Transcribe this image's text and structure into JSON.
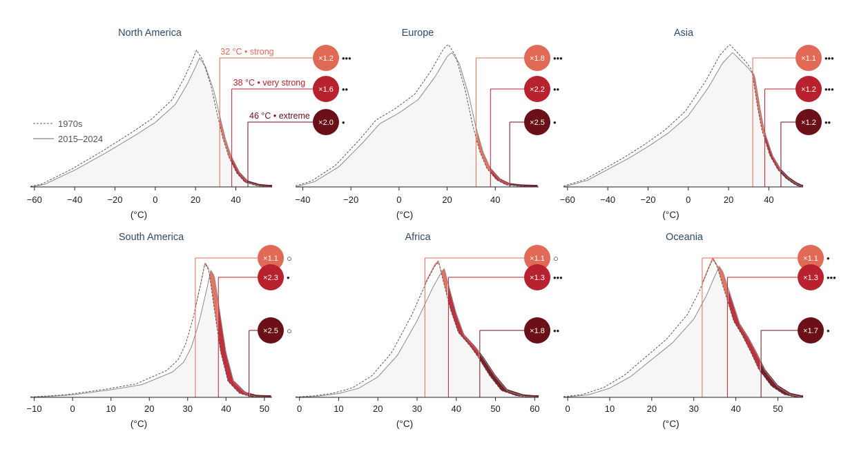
{
  "colors": {
    "strong": "#e06a55",
    "very_strong": "#b8212e",
    "extreme": "#6b0f18",
    "title": "#2f4a6b",
    "dots": "#2a3a5c",
    "fill": "#f6f6f6",
    "curve": "#8a8a8a"
  },
  "legend": {
    "items": [
      "1970s",
      "2015–2024"
    ]
  },
  "chart_data": [
    {
      "type": "area",
      "title": "North America",
      "xlabel": "(°C)",
      "xlim": [
        -62,
        58
      ],
      "xticks": [
        -60,
        -40,
        -20,
        0,
        20,
        40
      ],
      "peak": 21,
      "thresholds": [
        {
          "temp": 32,
          "label": "32 °C • strong",
          "ratio": "×1.2",
          "dots": "•••"
        },
        {
          "temp": 38,
          "label": "38 °C • very strong",
          "ratio": "×1.6",
          "dots": "••"
        },
        {
          "temp": 46,
          "label": "46 °C • extreme",
          "ratio": "×2.0",
          "dots": "•"
        }
      ]
    },
    {
      "type": "area",
      "title": "Europe",
      "xlabel": "(°C)",
      "xlim": [
        -43,
        58
      ],
      "xticks": [
        -40,
        -20,
        0,
        20,
        40
      ],
      "peak": 21,
      "thresholds": [
        {
          "temp": 32,
          "ratio": "×1.8",
          "dots": "•••"
        },
        {
          "temp": 38,
          "ratio": "×2.2",
          "dots": "••"
        },
        {
          "temp": 46,
          "ratio": "×2.5",
          "dots": "•"
        }
      ]
    },
    {
      "type": "area",
      "title": "Asia",
      "xlabel": "(°C)",
      "xlim": [
        -62,
        57
      ],
      "xticks": [
        -60,
        -40,
        -20,
        0,
        20,
        40
      ],
      "peak": 23,
      "thresholds": [
        {
          "temp": 32,
          "ratio": "×1.1",
          "dots": "•••"
        },
        {
          "temp": 38,
          "ratio": "×1.2",
          "dots": "•••"
        },
        {
          "temp": 46,
          "ratio": "×1.2",
          "dots": "••"
        }
      ]
    },
    {
      "type": "area",
      "title": "South America",
      "xlabel": "(°C)",
      "xlim": [
        -11,
        52
      ],
      "xticks": [
        -10,
        0,
        10,
        20,
        30,
        40,
        50
      ],
      "peak": 36,
      "thresholds": [
        {
          "temp": 32,
          "ratio": "×1.1",
          "dots": "○"
        },
        {
          "temp": 38,
          "ratio": "×2.3",
          "dots": "•"
        },
        {
          "temp": 46,
          "ratio": "×2.5",
          "dots": "○"
        }
      ]
    },
    {
      "type": "area",
      "title": "Africa",
      "xlabel": "(°C)",
      "xlim": [
        -1,
        61
      ],
      "xticks": [
        0,
        10,
        20,
        30,
        40,
        50,
        60
      ],
      "peak": 37,
      "thresholds": [
        {
          "temp": 32,
          "ratio": "×1.1",
          "dots": "○"
        },
        {
          "temp": 38,
          "ratio": "×1.3",
          "dots": "•••"
        },
        {
          "temp": 46,
          "ratio": "×1.8",
          "dots": "••"
        }
      ]
    },
    {
      "type": "area",
      "title": "Oceania",
      "xlabel": "(°C)",
      "xlim": [
        -1,
        56
      ],
      "xticks": [
        0,
        10,
        20,
        30,
        40,
        50
      ],
      "peak": 36,
      "thresholds": [
        {
          "temp": 32,
          "ratio": "×1.1",
          "dots": "•"
        },
        {
          "temp": 38,
          "ratio": "×1.3",
          "dots": "•••"
        },
        {
          "temp": 46,
          "ratio": "×1.7",
          "dots": "•"
        }
      ]
    }
  ]
}
